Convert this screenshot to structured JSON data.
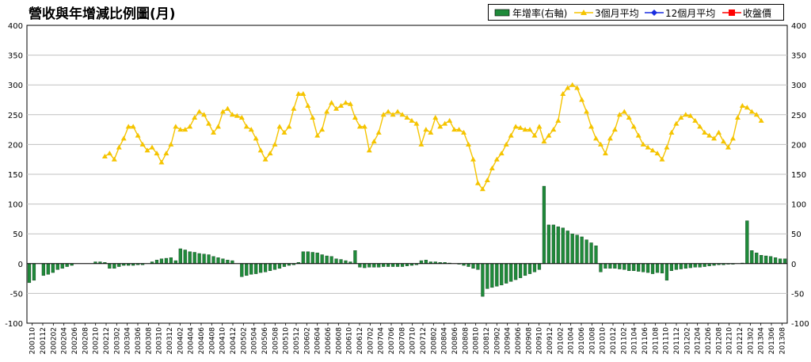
{
  "chart_data": {
    "type": "bar+line",
    "title": "營收與年增減比例圖(月)",
    "legend": [
      "年增率(右軸)",
      "3個月平均",
      "12個月平均",
      "收盤價"
    ],
    "left_axis": {
      "ylim": [
        -100,
        400
      ],
      "ticks": [
        -100,
        -50,
        0,
        50,
        100,
        150,
        200,
        250,
        300,
        350,
        400
      ]
    },
    "right_axis": {
      "ylim": [
        -100,
        400
      ],
      "ticks": [
        -100,
        -50,
        0,
        50,
        100,
        150,
        200,
        250,
        300,
        350,
        400
      ]
    },
    "x_tick_labels": [
      "200110",
      "200112",
      "200202",
      "200204",
      "200206",
      "200208",
      "200210",
      "200212",
      "200302",
      "200304",
      "200306",
      "200308",
      "200310",
      "200312",
      "200402",
      "200404",
      "200406",
      "200408",
      "200410",
      "200412",
      "200502",
      "200504",
      "200506",
      "200508",
      "200510",
      "200512",
      "200602",
      "200604",
      "200606",
      "200608",
      "200610",
      "200612",
      "200702",
      "200704",
      "200706",
      "200708",
      "200710",
      "200712",
      "200802",
      "200804",
      "200806",
      "200808",
      "200810",
      "200812",
      "200902",
      "200904",
      "200906",
      "200908",
      "200910",
      "200912",
      "201002",
      "201004",
      "201006",
      "201008",
      "201010",
      "201012",
      "201102",
      "201104",
      "201106",
      "201108",
      "201110",
      "201112",
      "201202",
      "201204",
      "201206",
      "201208",
      "201210",
      "201212",
      "201302",
      "201304",
      "201306",
      "201308"
    ],
    "colors": {
      "bar": "#1f8a3a",
      "avg3": "#f5c400",
      "avg12": "#1a2ee0",
      "price": "#ff0000",
      "grid": "#c0c0c0"
    },
    "series": {
      "yoy": [
        -32,
        -28,
        0,
        -20,
        -18,
        -15,
        -10,
        -8,
        -5,
        -3,
        0,
        0,
        0,
        0,
        3,
        3,
        2,
        -8,
        -8,
        -5,
        -3,
        -3,
        -3,
        -2,
        -2,
        0,
        3,
        6,
        8,
        9,
        10,
        5,
        25,
        23,
        20,
        19,
        17,
        16,
        15,
        12,
        10,
        8,
        6,
        5,
        0,
        -22,
        -20,
        -18,
        -17,
        -15,
        -14,
        -12,
        -10,
        -8,
        -5,
        -3,
        -2,
        2,
        20,
        20,
        19,
        18,
        15,
        13,
        12,
        8,
        7,
        5,
        3,
        22,
        -6,
        -7,
        -6,
        -6,
        -6,
        -5,
        -5,
        -5,
        -5,
        -5,
        -4,
        -3,
        -2,
        5,
        6,
        3,
        3,
        2,
        2,
        1,
        0,
        -1,
        -3,
        -5,
        -8,
        -10,
        -55,
        -42,
        -40,
        -38,
        -36,
        -33,
        -30,
        -27,
        -24,
        -20,
        -17,
        -14,
        -10,
        130,
        65,
        65,
        62,
        60,
        55,
        50,
        48,
        45,
        40,
        35,
        30,
        -14,
        -8,
        -8,
        -8,
        -9,
        -10,
        -12,
        -12,
        -13,
        -14,
        -15,
        -17,
        -15,
        -16,
        -28,
        -12,
        -10,
        -9,
        -8,
        -7,
        -6,
        -6,
        -5,
        -4,
        -3,
        -2,
        -2,
        -1,
        -1,
        0,
        1,
        72,
        22,
        18,
        14,
        13,
        12,
        10,
        8,
        8
      ],
      "avg3": [
        null,
        null,
        null,
        null,
        null,
        null,
        null,
        null,
        null,
        null,
        null,
        null,
        null,
        null,
        null,
        null,
        180,
        185,
        175,
        195,
        210,
        230,
        230,
        215,
        200,
        190,
        195,
        185,
        170,
        185,
        200,
        230,
        225,
        225,
        230,
        245,
        255,
        250,
        235,
        220,
        230,
        255,
        260,
        250,
        248,
        245,
        230,
        225,
        210,
        190,
        175,
        185,
        200,
        230,
        220,
        230,
        260,
        285,
        285,
        265,
        245,
        215,
        225,
        255,
        270,
        260,
        265,
        270,
        268,
        245,
        230,
        230,
        190,
        205,
        220,
        250,
        255,
        250,
        255,
        250,
        245,
        240,
        235,
        200,
        225,
        220,
        245,
        230,
        235,
        240,
        225,
        225,
        220,
        200,
        175,
        135,
        125,
        140,
        160,
        175,
        185,
        200,
        215,
        230,
        228,
        225,
        225,
        215,
        230,
        205,
        215,
        225,
        240,
        285,
        295,
        300,
        295,
        275,
        255,
        230,
        210,
        200,
        185,
        210,
        225,
        250,
        255,
        245,
        230,
        215,
        200,
        195,
        190,
        185,
        175,
        195,
        220,
        235,
        245,
        250,
        248,
        240,
        230,
        220,
        215,
        210,
        220,
        205,
        195,
        210,
        245,
        265,
        262,
        255,
        250,
        240
      ]
    }
  }
}
